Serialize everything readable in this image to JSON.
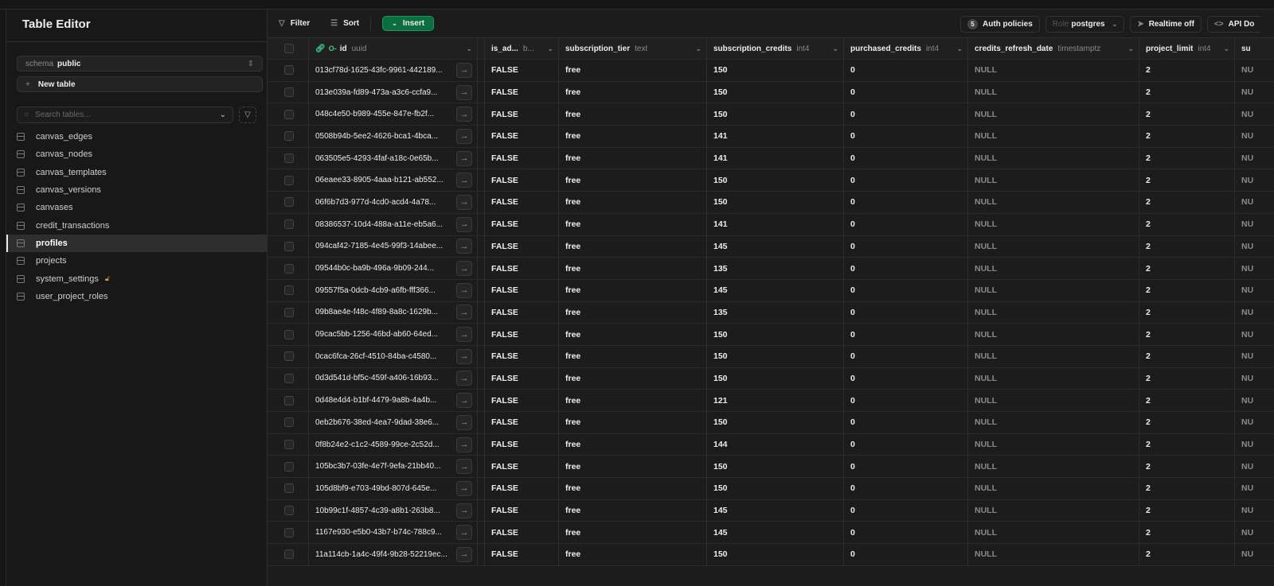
{
  "sidebar": {
    "title": "Table Editor",
    "schema_label": "schema",
    "schema_value": "public",
    "new_table": "New table",
    "search_placeholder": "Search tables...",
    "tables": [
      {
        "name": "canvas_edges"
      },
      {
        "name": "canvas_nodes"
      },
      {
        "name": "canvas_templates"
      },
      {
        "name": "canvas_versions"
      },
      {
        "name": "canvases"
      },
      {
        "name": "credit_transactions"
      },
      {
        "name": "profiles",
        "active": true
      },
      {
        "name": "projects"
      },
      {
        "name": "system_settings",
        "locked": true
      },
      {
        "name": "user_project_roles"
      }
    ]
  },
  "toolbar": {
    "filter": "Filter",
    "sort": "Sort",
    "insert": "Insert",
    "auth_count": "5",
    "auth_policies": "Auth policies",
    "role_label": "Role",
    "role_value": "postgres",
    "realtime": "Realtime off",
    "api_docs": "API Do"
  },
  "columns": [
    {
      "name": "id",
      "type": "uuid"
    },
    {
      "name": "is_ad...",
      "type": "b..."
    },
    {
      "name": "subscription_tier",
      "type": "text"
    },
    {
      "name": "subscription_credits",
      "type": "int4"
    },
    {
      "name": "purchased_credits",
      "type": "int4"
    },
    {
      "name": "credits_refresh_date",
      "type": "timestamptz"
    },
    {
      "name": "project_limit",
      "type": "int4"
    },
    {
      "name": "su",
      "type": ""
    }
  ],
  "rows": [
    {
      "id": "013cf78d-1625-43fc-9961-442189...",
      "is_admin": "FALSE",
      "tier": "free",
      "credits": "150",
      "purchased": "0",
      "refresh": "NULL",
      "limit": "2",
      "last": "NU"
    },
    {
      "id": "013e039a-fd89-473a-a3c6-ccfa9...",
      "is_admin": "FALSE",
      "tier": "free",
      "credits": "150",
      "purchased": "0",
      "refresh": "NULL",
      "limit": "2",
      "last": "NU"
    },
    {
      "id": "048c4e50-b989-455e-847e-fb2f...",
      "is_admin": "FALSE",
      "tier": "free",
      "credits": "150",
      "purchased": "0",
      "refresh": "NULL",
      "limit": "2",
      "last": "NU"
    },
    {
      "id": "0508b94b-5ee2-4626-bca1-4bca...",
      "is_admin": "FALSE",
      "tier": "free",
      "credits": "141",
      "purchased": "0",
      "refresh": "NULL",
      "limit": "2",
      "last": "NU"
    },
    {
      "id": "063505e5-4293-4faf-a18c-0e65b...",
      "is_admin": "FALSE",
      "tier": "free",
      "credits": "141",
      "purchased": "0",
      "refresh": "NULL",
      "limit": "2",
      "last": "NU"
    },
    {
      "id": "06eaee33-8905-4aaa-b121-ab552...",
      "is_admin": "FALSE",
      "tier": "free",
      "credits": "150",
      "purchased": "0",
      "refresh": "NULL",
      "limit": "2",
      "last": "NU"
    },
    {
      "id": "06f6b7d3-977d-4cd0-acd4-4a78...",
      "is_admin": "FALSE",
      "tier": "free",
      "credits": "150",
      "purchased": "0",
      "refresh": "NULL",
      "limit": "2",
      "last": "NU"
    },
    {
      "id": "08386537-10d4-488a-a11e-eb5a6...",
      "is_admin": "FALSE",
      "tier": "free",
      "credits": "141",
      "purchased": "0",
      "refresh": "NULL",
      "limit": "2",
      "last": "NU"
    },
    {
      "id": "094caf42-7185-4e45-99f3-14abee...",
      "is_admin": "FALSE",
      "tier": "free",
      "credits": "145",
      "purchased": "0",
      "refresh": "NULL",
      "limit": "2",
      "last": "NU"
    },
    {
      "id": "09544b0c-ba9b-496a-9b09-244...",
      "is_admin": "FALSE",
      "tier": "free",
      "credits": "135",
      "purchased": "0",
      "refresh": "NULL",
      "limit": "2",
      "last": "NU"
    },
    {
      "id": "09557f5a-0dcb-4cb9-a6fb-fff366...",
      "is_admin": "FALSE",
      "tier": "free",
      "credits": "145",
      "purchased": "0",
      "refresh": "NULL",
      "limit": "2",
      "last": "NU"
    },
    {
      "id": "09b8ae4e-f48c-4f89-8a8c-1629b...",
      "is_admin": "FALSE",
      "tier": "free",
      "credits": "135",
      "purchased": "0",
      "refresh": "NULL",
      "limit": "2",
      "last": "NU"
    },
    {
      "id": "09cac5bb-1256-46bd-ab60-64ed...",
      "is_admin": "FALSE",
      "tier": "free",
      "credits": "150",
      "purchased": "0",
      "refresh": "NULL",
      "limit": "2",
      "last": "NU"
    },
    {
      "id": "0cac6fca-26cf-4510-84ba-c4580...",
      "is_admin": "FALSE",
      "tier": "free",
      "credits": "150",
      "purchased": "0",
      "refresh": "NULL",
      "limit": "2",
      "last": "NU"
    },
    {
      "id": "0d3d541d-bf5c-459f-a406-16b93...",
      "is_admin": "FALSE",
      "tier": "free",
      "credits": "150",
      "purchased": "0",
      "refresh": "NULL",
      "limit": "2",
      "last": "NU"
    },
    {
      "id": "0d48e4d4-b1bf-4479-9a8b-4a4b...",
      "is_admin": "FALSE",
      "tier": "free",
      "credits": "121",
      "purchased": "0",
      "refresh": "NULL",
      "limit": "2",
      "last": "NU"
    },
    {
      "id": "0eb2b676-38ed-4ea7-9dad-38e6...",
      "is_admin": "FALSE",
      "tier": "free",
      "credits": "150",
      "purchased": "0",
      "refresh": "NULL",
      "limit": "2",
      "last": "NU"
    },
    {
      "id": "0f8b24e2-c1c2-4589-99ce-2c52d...",
      "is_admin": "FALSE",
      "tier": "free",
      "credits": "144",
      "purchased": "0",
      "refresh": "NULL",
      "limit": "2",
      "last": "NU"
    },
    {
      "id": "105bc3b7-03fe-4e7f-9efa-21bb40...",
      "is_admin": "FALSE",
      "tier": "free",
      "credits": "150",
      "purchased": "0",
      "refresh": "NULL",
      "limit": "2",
      "last": "NU"
    },
    {
      "id": "105d8bf9-e703-49bd-807d-645e...",
      "is_admin": "FALSE",
      "tier": "free",
      "credits": "150",
      "purchased": "0",
      "refresh": "NULL",
      "limit": "2",
      "last": "NU"
    },
    {
      "id": "10b99c1f-4857-4c39-a8b1-263b8...",
      "is_admin": "FALSE",
      "tier": "free",
      "credits": "145",
      "purchased": "0",
      "refresh": "NULL",
      "limit": "2",
      "last": "NU"
    },
    {
      "id": "1167e930-e5b0-43b7-b74c-788c9...",
      "is_admin": "FALSE",
      "tier": "free",
      "credits": "145",
      "purchased": "0",
      "refresh": "NULL",
      "limit": "2",
      "last": "NU"
    },
    {
      "id": "11a114cb-1a4c-49f4-9b28-52219ec...",
      "is_admin": "FALSE",
      "tier": "free",
      "credits": "150",
      "purchased": "0",
      "refresh": "NULL",
      "limit": "2",
      "last": "NU"
    }
  ],
  "colors": {
    "accent": "#0b6e3f",
    "key": "#3ecf8e",
    "lock": "#d9a030"
  }
}
